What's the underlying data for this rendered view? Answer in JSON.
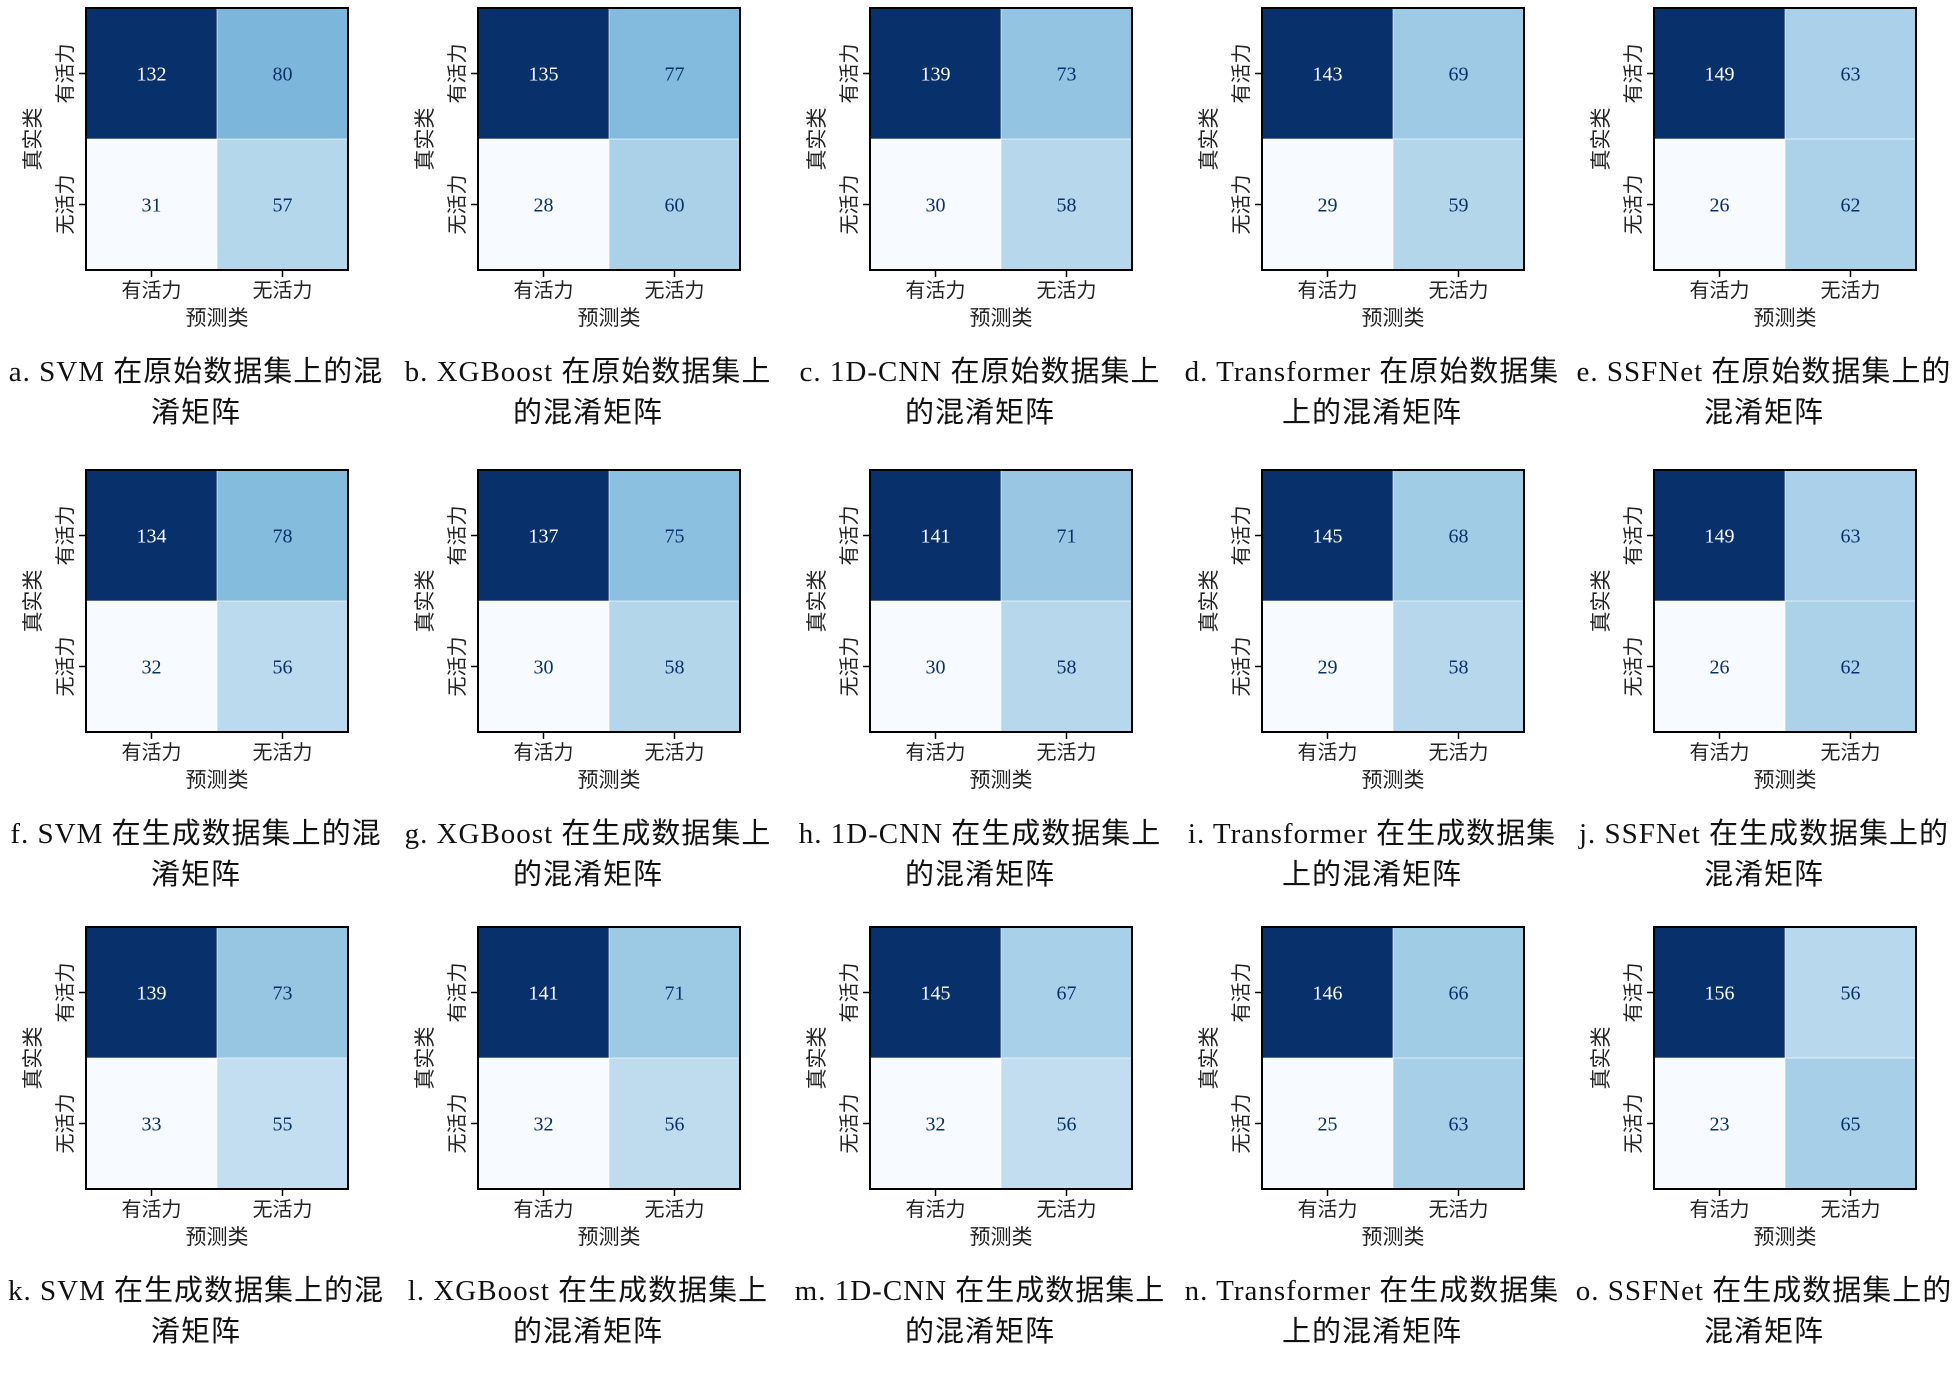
{
  "labels": {
    "true_axis": "真实类",
    "pred_axis": "预测类",
    "class_active": "有活力",
    "class_inactive": "无活力"
  },
  "colormap": {
    "low": "#f7fbff",
    "mid": "#6baed6",
    "high": "#08306b",
    "dark_text": "#08306b",
    "light_text": "#ffffff"
  },
  "chart_data": [
    {
      "type": "heatmap",
      "caption": "a. SVM 在原始数据集上的混淆矩阵",
      "rows": [
        "有活力",
        "无活力"
      ],
      "cols": [
        "有活力",
        "无活力"
      ],
      "values": [
        [
          132,
          80
        ],
        [
          31,
          57
        ]
      ]
    },
    {
      "type": "heatmap",
      "caption": "b. XGBoost 在原始数据集上的混淆矩阵",
      "rows": [
        "有活力",
        "无活力"
      ],
      "cols": [
        "有活力",
        "无活力"
      ],
      "values": [
        [
          135,
          77
        ],
        [
          28,
          60
        ]
      ]
    },
    {
      "type": "heatmap",
      "caption": "c. 1D-CNN 在原始数据集上的混淆矩阵",
      "rows": [
        "有活力",
        "无活力"
      ],
      "cols": [
        "有活力",
        "无活力"
      ],
      "values": [
        [
          139,
          73
        ],
        [
          30,
          58
        ]
      ]
    },
    {
      "type": "heatmap",
      "caption": "d. Transformer 在原始数据集上的混淆矩阵",
      "rows": [
        "有活力",
        "无活力"
      ],
      "cols": [
        "有活力",
        "无活力"
      ],
      "values": [
        [
          143,
          69
        ],
        [
          29,
          59
        ]
      ]
    },
    {
      "type": "heatmap",
      "caption": "e. SSFNet 在原始数据集上的混淆矩阵",
      "rows": [
        "有活力",
        "无活力"
      ],
      "cols": [
        "有活力",
        "无活力"
      ],
      "values": [
        [
          149,
          63
        ],
        [
          26,
          62
        ]
      ]
    },
    {
      "type": "heatmap",
      "caption": "f. SVM 在生成数据集上的混淆矩阵",
      "rows": [
        "有活力",
        "无活力"
      ],
      "cols": [
        "有活力",
        "无活力"
      ],
      "values": [
        [
          134,
          78
        ],
        [
          32,
          56
        ]
      ]
    },
    {
      "type": "heatmap",
      "caption": "g. XGBoost 在生成数据集上的混淆矩阵",
      "rows": [
        "有活力",
        "无活力"
      ],
      "cols": [
        "有活力",
        "无活力"
      ],
      "values": [
        [
          137,
          75
        ],
        [
          30,
          58
        ]
      ]
    },
    {
      "type": "heatmap",
      "caption": "h. 1D-CNN 在生成数据集上的混淆矩阵",
      "rows": [
        "有活力",
        "无活力"
      ],
      "cols": [
        "有活力",
        "无活力"
      ],
      "values": [
        [
          141,
          71
        ],
        [
          30,
          58
        ]
      ]
    },
    {
      "type": "heatmap",
      "caption": "i. Transformer 在生成数据集上的混淆矩阵",
      "rows": [
        "有活力",
        "无活力"
      ],
      "cols": [
        "有活力",
        "无活力"
      ],
      "values": [
        [
          145,
          68
        ],
        [
          29,
          58
        ]
      ]
    },
    {
      "type": "heatmap",
      "caption": "j. SSFNet 在生成数据集上的混淆矩阵",
      "rows": [
        "有活力",
        "无活力"
      ],
      "cols": [
        "有活力",
        "无活力"
      ],
      "values": [
        [
          149,
          63
        ],
        [
          26,
          62
        ]
      ]
    },
    {
      "type": "heatmap",
      "caption": "k. SVM 在生成数据集上的混淆矩阵",
      "rows": [
        "有活力",
        "无活力"
      ],
      "cols": [
        "有活力",
        "无活力"
      ],
      "values": [
        [
          139,
          73
        ],
        [
          33,
          55
        ]
      ]
    },
    {
      "type": "heatmap",
      "caption": "l. XGBoost 在生成数据集上的混淆矩阵",
      "rows": [
        "有活力",
        "无活力"
      ],
      "cols": [
        "有活力",
        "无活力"
      ],
      "values": [
        [
          141,
          71
        ],
        [
          32,
          56
        ]
      ]
    },
    {
      "type": "heatmap",
      "caption": "m. 1D-CNN 在生成数据集上的混淆矩阵",
      "rows": [
        "有活力",
        "无活力"
      ],
      "cols": [
        "有活力",
        "无活力"
      ],
      "values": [
        [
          145,
          67
        ],
        [
          32,
          56
        ]
      ]
    },
    {
      "type": "heatmap",
      "caption": "n. Transformer 在生成数据集上的混淆矩阵",
      "rows": [
        "有活力",
        "无活力"
      ],
      "cols": [
        "有活力",
        "无活力"
      ],
      "values": [
        [
          146,
          66
        ],
        [
          25,
          63
        ]
      ]
    },
    {
      "type": "heatmap",
      "caption": "o. SSFNet 在生成数据集上的混淆矩阵",
      "rows": [
        "有活力",
        "无活力"
      ],
      "cols": [
        "有活力",
        "无活力"
      ],
      "values": [
        [
          156,
          56
        ],
        [
          23,
          65
        ]
      ]
    }
  ]
}
